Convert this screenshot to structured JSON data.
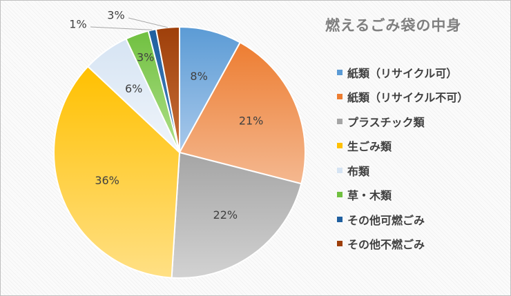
{
  "chart_data": {
    "type": "pie",
    "title": "燃えるごみ袋の中身",
    "legend_position": "right",
    "slices": [
      {
        "label": "紙類（リサイクル可）",
        "value": 8,
        "display": "8%",
        "color": "#5b9bd5",
        "color_light": "#a9c9eb"
      },
      {
        "label": "紙類（リサイクル不可）",
        "value": 21,
        "display": "21%",
        "color": "#ed7d31",
        "color_light": "#f4b890"
      },
      {
        "label": "プラスチック類",
        "value": 22,
        "display": "22%",
        "color": "#a5a5a5",
        "color_light": "#d2d2d2"
      },
      {
        "label": "生ごみ類",
        "value": 36,
        "display": "36%",
        "color": "#ffc000",
        "color_light": "#ffe085"
      },
      {
        "label": "布類",
        "value": 6,
        "display": "6%",
        "color": "#d6e4f3",
        "color_light": "#f0f5fb"
      },
      {
        "label": "草・木類",
        "value": 3,
        "display": "3%",
        "color": "#70c040",
        "color_light": "#b0e08a"
      },
      {
        "label": "その他可燃ごみ",
        "value": 1,
        "display": "1%",
        "color": "#1f5f9f",
        "color_light": "#4a86c0"
      },
      {
        "label": "その他不燃ごみ",
        "value": 3,
        "display": "3%",
        "color": "#9e3f0a",
        "color_light": "#c9713a"
      }
    ]
  }
}
